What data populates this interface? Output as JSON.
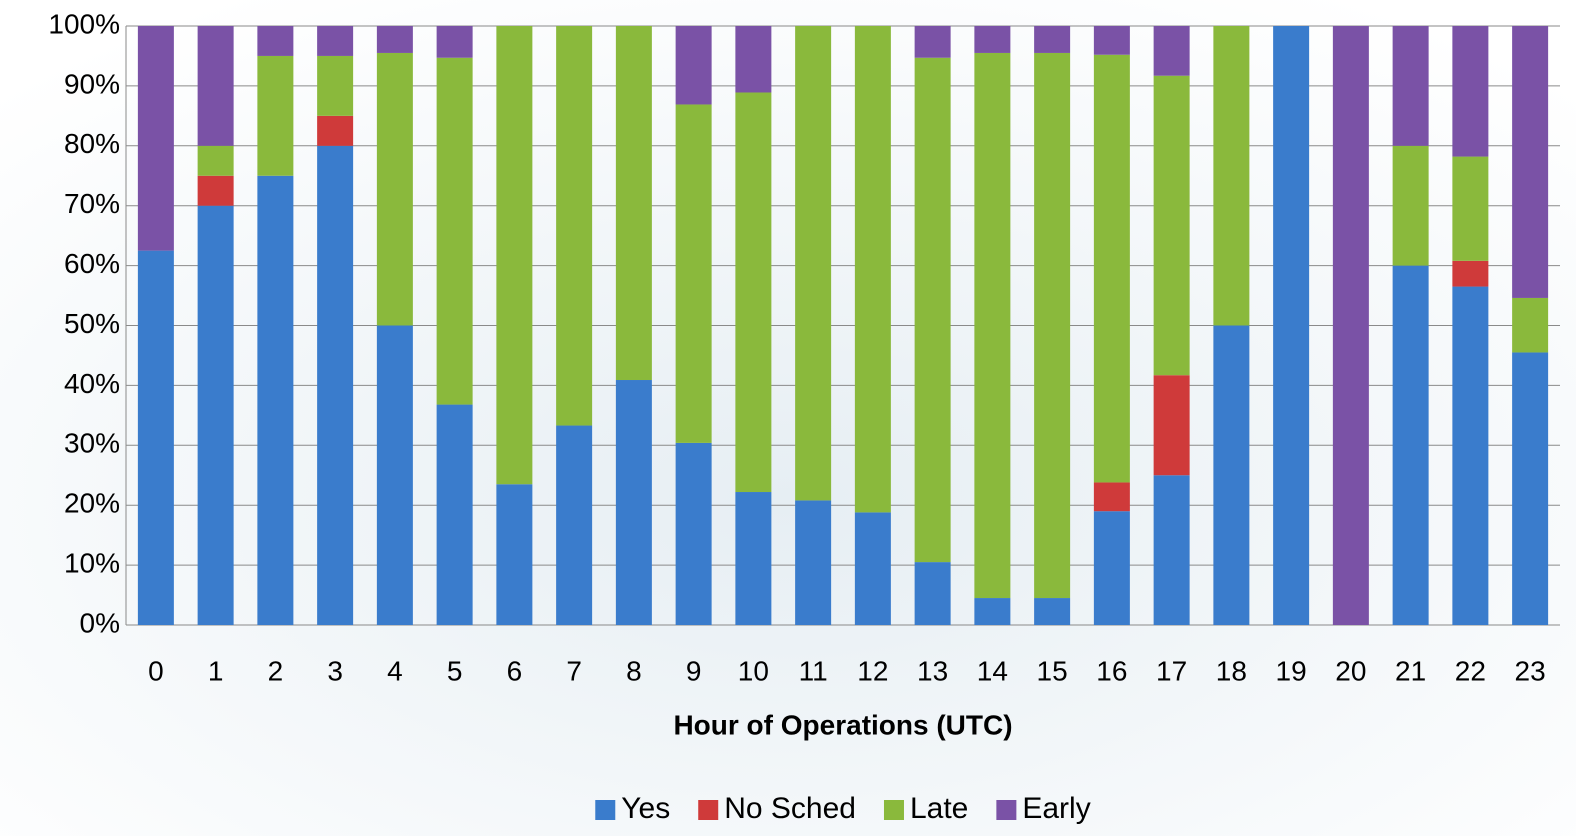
{
  "chart_data": {
    "type": "stacked_bar",
    "x_label": "Hour of Operations (UTC)",
    "categories": [
      "0",
      "1",
      "2",
      "3",
      "4",
      "5",
      "6",
      "7",
      "8",
      "9",
      "10",
      "11",
      "12",
      "13",
      "14",
      "15",
      "16",
      "17",
      "18",
      "19",
      "20",
      "21",
      "22",
      "23"
    ],
    "series": [
      {
        "name": "Yes",
        "color": "#3a7ccc",
        "values": [
          62.5,
          70,
          75,
          80,
          50,
          36.8,
          23.5,
          33.3,
          40.9,
          30.4,
          22.2,
          20.8,
          18.8,
          10.5,
          4.5,
          4.5,
          19,
          25,
          50,
          100,
          0,
          60,
          56.5,
          45.5
        ]
      },
      {
        "name": "No Sched",
        "color": "#cf3a3a",
        "values": [
          0,
          5,
          0,
          5,
          0,
          0,
          0,
          0,
          0,
          0,
          0,
          0,
          0,
          0,
          0,
          0,
          4.8,
          16.7,
          0,
          0,
          0,
          0,
          4.3,
          0
        ]
      },
      {
        "name": "Late",
        "color": "#8ab93c",
        "values": [
          0,
          5,
          20,
          10,
          45.5,
          57.9,
          76.5,
          66.7,
          59.1,
          56.5,
          66.7,
          79.2,
          81.2,
          84.2,
          91,
          91,
          71.4,
          50,
          50,
          0,
          0,
          20,
          17.4,
          9.1
        ]
      },
      {
        "name": "Early",
        "color": "#7a52a6",
        "values": [
          37.5,
          20,
          5,
          5,
          4.5,
          5.3,
          0,
          0,
          0,
          13.1,
          11.1,
          0,
          0,
          5.3,
          4.5,
          4.5,
          4.8,
          8.3,
          0,
          0,
          100,
          20,
          21.8,
          45.4
        ]
      }
    ],
    "ylim": [
      0,
      100
    ],
    "yticks": [
      {
        "value": 0,
        "label": "0%"
      },
      {
        "value": 10,
        "label": "10%"
      },
      {
        "value": 20,
        "label": "20%"
      },
      {
        "value": 30,
        "label": "30%"
      },
      {
        "value": 40,
        "label": "40%"
      },
      {
        "value": 50,
        "label": "50%"
      },
      {
        "value": 60,
        "label": "60%"
      },
      {
        "value": 70,
        "label": "70%"
      },
      {
        "value": 80,
        "label": "80%"
      },
      {
        "value": 90,
        "label": "90%"
      },
      {
        "value": 100,
        "label": "100%"
      }
    ],
    "grid": true,
    "legend": "bottom"
  }
}
